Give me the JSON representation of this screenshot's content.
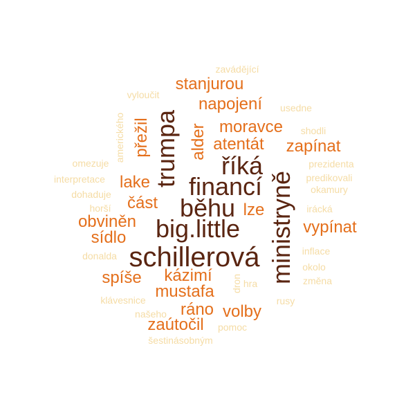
{
  "colors": {
    "dark": "#5a2511",
    "orange": "#e46f1b",
    "pale": "#f5dca5"
  },
  "words": [
    {
      "text": "schillerová",
      "tier": "t1"
    },
    {
      "text": "big.little",
      "tier": "t1"
    },
    {
      "text": "běhu",
      "tier": "t1"
    },
    {
      "text": "financí",
      "tier": "t1"
    },
    {
      "text": "říká",
      "tier": "t1"
    },
    {
      "text": "trumpa",
      "tier": "t1"
    },
    {
      "text": "ministryně",
      "tier": "t1"
    },
    {
      "text": "stanjurou",
      "tier": "t2"
    },
    {
      "text": "napojení",
      "tier": "t2"
    },
    {
      "text": "moravce",
      "tier": "t2"
    },
    {
      "text": "atentát",
      "tier": "t2"
    },
    {
      "text": "zapínat",
      "tier": "t2"
    },
    {
      "text": "přežil",
      "tier": "t2"
    },
    {
      "text": "alder",
      "tier": "t2"
    },
    {
      "text": "lake",
      "tier": "t2"
    },
    {
      "text": "část",
      "tier": "t2"
    },
    {
      "text": "lze",
      "tier": "t2"
    },
    {
      "text": "obviněn",
      "tier": "t2"
    },
    {
      "text": "vypínat",
      "tier": "t2"
    },
    {
      "text": "sídlo",
      "tier": "t2"
    },
    {
      "text": "spíše",
      "tier": "t2"
    },
    {
      "text": "kázimí",
      "tier": "t2"
    },
    {
      "text": "mustafa",
      "tier": "t2"
    },
    {
      "text": "ráno",
      "tier": "t2"
    },
    {
      "text": "volby",
      "tier": "t2"
    },
    {
      "text": "zaútočil",
      "tier": "t2"
    },
    {
      "text": "zavádějící",
      "tier": "t3"
    },
    {
      "text": "vyloučit",
      "tier": "t3"
    },
    {
      "text": "usedne",
      "tier": "t3"
    },
    {
      "text": "amerického",
      "tier": "t3"
    },
    {
      "text": "shodli",
      "tier": "t3"
    },
    {
      "text": "omezuje",
      "tier": "t3"
    },
    {
      "text": "prezidenta",
      "tier": "t3"
    },
    {
      "text": "interpretace",
      "tier": "t3"
    },
    {
      "text": "predikovali",
      "tier": "t3"
    },
    {
      "text": "dohaduje",
      "tier": "t3"
    },
    {
      "text": "okamury",
      "tier": "t3"
    },
    {
      "text": "horší",
      "tier": "t3"
    },
    {
      "text": "irácká",
      "tier": "t3"
    },
    {
      "text": "donalda",
      "tier": "t3"
    },
    {
      "text": "inflace",
      "tier": "t3"
    },
    {
      "text": "okolo",
      "tier": "t3"
    },
    {
      "text": "změna",
      "tier": "t3"
    },
    {
      "text": "dron",
      "tier": "t3"
    },
    {
      "text": "hra",
      "tier": "t3"
    },
    {
      "text": "klávesnice",
      "tier": "t3"
    },
    {
      "text": "rusy",
      "tier": "t3"
    },
    {
      "text": "našeho",
      "tier": "t3"
    },
    {
      "text": "pomoc",
      "tier": "t3"
    },
    {
      "text": "šestinásobným",
      "tier": "t3"
    }
  ]
}
